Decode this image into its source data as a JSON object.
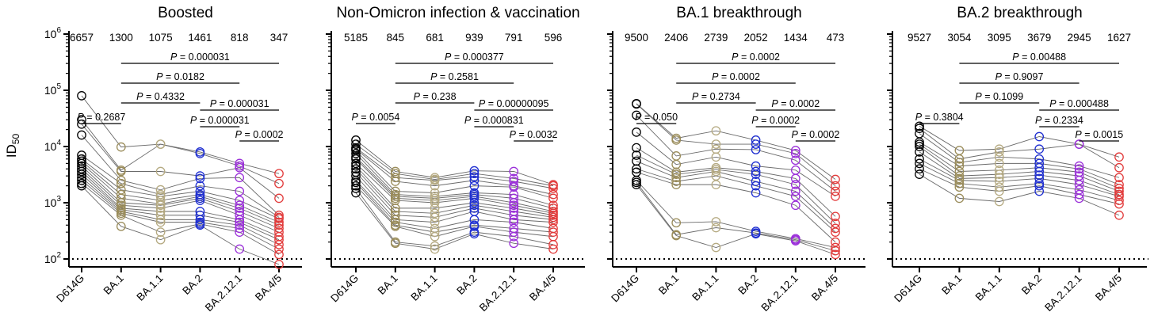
{
  "figure": {
    "ylabel": "ID",
    "ylabel_sub": "50",
    "y_tick_labels": [
      {
        "base": "10",
        "exp": "2",
        "value": 100
      },
      {
        "base": "10",
        "exp": "3",
        "value": 1000
      },
      {
        "base": "10",
        "exp": "4",
        "value": 10000
      },
      {
        "base": "10",
        "exp": "5",
        "value": 100000
      },
      {
        "base": "10",
        "exp": "6",
        "value": 1000000
      }
    ]
  },
  "chart_data": [
    {
      "type": "scatter",
      "title": "Boosted",
      "yscale": "log",
      "ylim": [
        100,
        1000000
      ],
      "limit_of_detection": 100,
      "categories": [
        "D614G",
        "BA.1",
        "BA.1.1",
        "BA.2",
        "BA.2.12.1",
        "BA.4/5"
      ],
      "category_colors": [
        "#000000",
        "#9a8c5a",
        "#b5aa82",
        "#1f2fd0",
        "#9b30d9",
        "#e23b3b"
      ],
      "gmt": [
        "6657",
        "1300",
        "1075",
        "1461",
        "818",
        "347"
      ],
      "comparisons": [
        {
          "from": 1,
          "to": 5,
          "p": "0.000031"
        },
        {
          "from": 1,
          "to": 4,
          "p": "0.0182"
        },
        {
          "from": 1,
          "to": 3,
          "p": "0.4332"
        },
        {
          "from": 3,
          "to": 5,
          "p": "0.000031"
        },
        {
          "from": 0,
          "to": 1,
          "p": "0.2687"
        },
        {
          "from": 3,
          "to": 4,
          "p": "0.000031"
        },
        {
          "from": 4,
          "to": 5,
          "p": "0.0002"
        }
      ],
      "series": [
        {
          "values": [
            80000,
            9800,
            11000,
            8000,
            5000,
            3300
          ]
        },
        {
          "values": [
            30000,
            3800,
            11000,
            7500,
            4500,
            2200
          ]
        },
        {
          "values": [
            25000,
            3600,
            3600,
            3000,
            4200,
            1200
          ]
        },
        {
          "values": [
            16000,
            2500,
            1700,
            2700,
            2800,
            600
          ]
        },
        {
          "values": [
            7000,
            2200,
            1400,
            2000,
            1600,
            550
          ]
        },
        {
          "values": [
            6000,
            1700,
            1300,
            1600,
            1100,
            520
          ]
        },
        {
          "values": [
            5500,
            1400,
            1100,
            1400,
            900,
            450
          ]
        },
        {
          "values": [
            5000,
            1200,
            950,
            1300,
            800,
            400
          ]
        },
        {
          "values": [
            4500,
            1000,
            900,
            1200,
            700,
            350
          ]
        },
        {
          "values": [
            4000,
            900,
            800,
            1100,
            600,
            300
          ]
        },
        {
          "values": [
            3600,
            800,
            700,
            700,
            500,
            250
          ]
        },
        {
          "values": [
            3200,
            750,
            600,
            600,
            450,
            220
          ]
        },
        {
          "values": [
            2800,
            700,
            500,
            500,
            400,
            180
          ]
        },
        {
          "values": [
            2500,
            650,
            450,
            450,
            350,
            150
          ]
        },
        {
          "values": [
            2200,
            600,
            300,
            420,
            300,
            120
          ]
        },
        {
          "values": [
            2000,
            380,
            220,
            400,
            150,
            80
          ]
        }
      ]
    },
    {
      "type": "scatter",
      "title": "Non-Omicron infection & vaccination",
      "yscale": "log",
      "ylim": [
        100,
        1000000
      ],
      "limit_of_detection": 100,
      "categories": [
        "D614G",
        "BA.1",
        "BA.1.1",
        "BA.2",
        "BA.2.12.1",
        "BA.4/5"
      ],
      "category_colors": [
        "#000000",
        "#9a8c5a",
        "#b5aa82",
        "#1f2fd0",
        "#9b30d9",
        "#e23b3b"
      ],
      "gmt": [
        "5185",
        "845",
        "681",
        "939",
        "791",
        "596"
      ],
      "comparisons": [
        {
          "from": 1,
          "to": 5,
          "p": "0.000377"
        },
        {
          "from": 1,
          "to": 4,
          "p": "0.2581"
        },
        {
          "from": 1,
          "to": 3,
          "p": "0.238"
        },
        {
          "from": 3,
          "to": 5,
          "p": "0.00000095"
        },
        {
          "from": 0,
          "to": 1,
          "p": "0.0054"
        },
        {
          "from": 3,
          "to": 4,
          "p": "0.000831"
        },
        {
          "from": 4,
          "to": 5,
          "p": "0.0032"
        }
      ],
      "series": [
        {
          "values": [
            13000,
            3600,
            2800,
            3700,
            3600,
            2100
          ]
        },
        {
          "values": [
            11000,
            3300,
            2600,
            3300,
            2700,
            2000
          ]
        },
        {
          "values": [
            9500,
            2800,
            2500,
            2900,
            2400,
            1800
          ]
        },
        {
          "values": [
            9000,
            2400,
            2000,
            2500,
            2000,
            1400
          ]
        },
        {
          "values": [
            8500,
            1600,
            1500,
            2000,
            1900,
            1200
          ]
        },
        {
          "values": [
            7500,
            1400,
            1300,
            1500,
            1400,
            900
          ]
        },
        {
          "values": [
            6500,
            1300,
            1200,
            1400,
            1200,
            800
          ]
        },
        {
          "values": [
            6000,
            1200,
            1100,
            1300,
            1000,
            700
          ]
        },
        {
          "values": [
            5000,
            1100,
            1000,
            1200,
            900,
            650
          ]
        },
        {
          "values": [
            4500,
            800,
            800,
            1000,
            800,
            600
          ]
        },
        {
          "values": [
            4000,
            700,
            650,
            900,
            700,
            550
          ]
        },
        {
          "values": [
            3500,
            600,
            550,
            800,
            600,
            500
          ]
        },
        {
          "values": [
            3000,
            500,
            450,
            700,
            500,
            450
          ]
        },
        {
          "values": [
            2500,
            450,
            350,
            500,
            450,
            350
          ]
        },
        {
          "values": [
            2300,
            400,
            300,
            400,
            350,
            300
          ]
        },
        {
          "values": [
            2000,
            380,
            250,
            380,
            300,
            250
          ]
        },
        {
          "values": [
            1800,
            200,
            170,
            300,
            250,
            180
          ]
        },
        {
          "values": [
            1500,
            190,
            150,
            280,
            190,
            150
          ]
        }
      ]
    },
    {
      "type": "scatter",
      "title": "BA.1 breakthrough",
      "yscale": "log",
      "ylim": [
        100,
        1000000
      ],
      "limit_of_detection": 100,
      "categories": [
        "D614G",
        "BA.1",
        "BA.1.1",
        "BA.2",
        "BA.2.12.1",
        "BA.4/5"
      ],
      "category_colors": [
        "#000000",
        "#9a8c5a",
        "#b5aa82",
        "#1f2fd0",
        "#9b30d9",
        "#e23b3b"
      ],
      "gmt": [
        "9500",
        "2406",
        "2739",
        "2052",
        "1434",
        "473"
      ],
      "comparisons": [
        {
          "from": 1,
          "to": 5,
          "p": "0.0002"
        },
        {
          "from": 1,
          "to": 4,
          "p": "0.0002"
        },
        {
          "from": 1,
          "to": 3,
          "p": "0.2734"
        },
        {
          "from": 3,
          "to": 5,
          "p": "0.0002"
        },
        {
          "from": 0,
          "to": 1,
          "p": "0.050"
        },
        {
          "from": 3,
          "to": 4,
          "p": "0.0002"
        },
        {
          "from": 4,
          "to": 5,
          "p": "0.0002"
        }
      ],
      "series": [
        {
          "values": [
            58000,
            14000,
            19000,
            13000,
            8500,
            2600
          ]
        },
        {
          "values": [
            57000,
            13000,
            11000,
            11000,
            7500,
            2000
          ]
        },
        {
          "values": [
            36000,
            6800,
            9000,
            8800,
            5700,
            1600
          ]
        },
        {
          "values": [
            18000,
            4800,
            6500,
            4500,
            3800,
            1300
          ]
        },
        {
          "values": [
            9500,
            3500,
            4200,
            3600,
            2700,
            570
          ]
        },
        {
          "values": [
            7000,
            3200,
            3900,
            3200,
            2100,
            430
          ]
        },
        {
          "values": [
            5500,
            2800,
            3600,
            2400,
            1600,
            350
          ]
        },
        {
          "values": [
            4000,
            2400,
            3000,
            2000,
            1300,
            300
          ]
        },
        {
          "values": [
            3500,
            2100,
            2100,
            1500,
            900,
            200
          ]
        },
        {
          "values": [
            2500,
            440,
            460,
            310,
            230,
            160
          ]
        },
        {
          "values": [
            2300,
            270,
            360,
            290,
            220,
            140
          ]
        },
        {
          "values": [
            2100,
            260,
            160,
            280,
            210,
            120
          ]
        }
      ]
    },
    {
      "type": "scatter",
      "title": "BA.2 breakthrough",
      "yscale": "log",
      "ylim": [
        100,
        1000000
      ],
      "limit_of_detection": 100,
      "categories": [
        "D614G",
        "BA.1",
        "BA.1.1",
        "BA.2",
        "BA.2.12.1",
        "BA.4/5"
      ],
      "category_colors": [
        "#000000",
        "#9a8c5a",
        "#b5aa82",
        "#1f2fd0",
        "#9b30d9",
        "#e23b3b"
      ],
      "gmt": [
        "9527",
        "3054",
        "3095",
        "3679",
        "2945",
        "1627"
      ],
      "comparisons": [
        {
          "from": 1,
          "to": 5,
          "p": "0.00488"
        },
        {
          "from": 1,
          "to": 4,
          "p": "0.9097"
        },
        {
          "from": 1,
          "to": 3,
          "p": "0.1099"
        },
        {
          "from": 3,
          "to": 5,
          "p": "0.000488"
        },
        {
          "from": 0,
          "to": 1,
          "p": "0.3804"
        },
        {
          "from": 3,
          "to": 4,
          "p": "0.2334"
        },
        {
          "from": 4,
          "to": 5,
          "p": "0.0015"
        }
      ],
      "series": [
        {
          "values": [
            23000,
            8500,
            9000,
            15000,
            11000,
            6500
          ]
        },
        {
          "values": [
            21000,
            6000,
            8000,
            9000,
            11000,
            4200
          ]
        },
        {
          "values": [
            17000,
            5200,
            6500,
            6000,
            4500,
            2800
          ]
        },
        {
          "values": [
            12000,
            4500,
            5000,
            5000,
            4000,
            2100
          ]
        },
        {
          "values": [
            11000,
            3600,
            3800,
            4200,
            3500,
            1800
          ]
        },
        {
          "values": [
            10000,
            3000,
            3200,
            3600,
            3000,
            1600
          ]
        },
        {
          "values": [
            8000,
            2700,
            2800,
            3100,
            2500,
            1400
          ]
        },
        {
          "values": [
            6000,
            2500,
            2400,
            2700,
            2100,
            1300
          ]
        },
        {
          "values": [
            5000,
            2200,
            1900,
            2200,
            1700,
            1100
          ]
        },
        {
          "values": [
            4000,
            1900,
            1600,
            2000,
            1400,
            950
          ]
        },
        {
          "values": [
            3200,
            1200,
            1050,
            1600,
            1200,
            600
          ]
        }
      ]
    }
  ]
}
